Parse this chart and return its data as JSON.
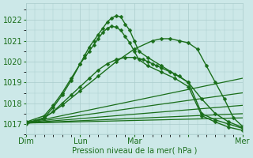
{
  "background_color": "#cce8e8",
  "grid_color": "#aacccc",
  "line_color": "#1a6e1a",
  "text_color": "#1a6e1a",
  "xlabel": "Pression niveau de la mer( hPa )",
  "ylim": [
    1016.5,
    1022.8
  ],
  "yticks": [
    1017,
    1018,
    1019,
    1020,
    1021,
    1022
  ],
  "xlim": [
    0,
    96
  ],
  "xtick_positions": [
    0,
    24,
    48,
    72,
    96
  ],
  "xtick_labels": [
    "Dim",
    "Lun",
    "Mar",
    "",
    "Mer"
  ],
  "series": [
    {
      "x": [
        0,
        8,
        12,
        16,
        20,
        24,
        26,
        28,
        30,
        32,
        34,
        36,
        38,
        40,
        42,
        44,
        46,
        48,
        50,
        54,
        60,
        66,
        72,
        78,
        84,
        90,
        96
      ],
      "y": [
        1017.0,
        1017.3,
        1017.8,
        1018.4,
        1019.1,
        1019.9,
        1020.3,
        1020.7,
        1021.0,
        1021.3,
        1021.6,
        1021.9,
        1022.1,
        1022.2,
        1022.15,
        1021.8,
        1021.5,
        1021.0,
        1020.5,
        1020.2,
        1019.8,
        1019.4,
        1019.0,
        1017.5,
        1017.2,
        1017.0,
        1016.8
      ],
      "marker": true,
      "lw": 1.0
    },
    {
      "x": [
        0,
        8,
        12,
        16,
        20,
        24,
        26,
        28,
        30,
        32,
        34,
        36,
        38,
        40,
        42,
        44,
        46,
        48,
        50,
        54,
        60,
        66,
        72,
        78,
        84,
        90,
        96
      ],
      "y": [
        1017.1,
        1017.4,
        1017.9,
        1018.5,
        1019.2,
        1019.9,
        1020.2,
        1020.5,
        1020.8,
        1021.1,
        1021.4,
        1021.6,
        1021.7,
        1021.65,
        1021.5,
        1021.2,
        1020.9,
        1020.5,
        1020.1,
        1019.8,
        1019.5,
        1019.2,
        1018.8,
        1017.4,
        1017.1,
        1016.85,
        1016.7
      ],
      "marker": true,
      "lw": 1.0
    },
    {
      "x": [
        0,
        8,
        16,
        24,
        32,
        40,
        48,
        56,
        60,
        64,
        68,
        72,
        76,
        80,
        84,
        88,
        92,
        96
      ],
      "y": [
        1017.05,
        1017.3,
        1017.9,
        1018.6,
        1019.3,
        1020.0,
        1020.6,
        1021.0,
        1021.1,
        1021.1,
        1021.0,
        1020.9,
        1020.6,
        1019.8,
        1019.0,
        1018.2,
        1017.3,
        1016.9
      ],
      "marker": true,
      "lw": 1.0
    },
    {
      "x": [
        0,
        4,
        8,
        12,
        16,
        20,
        24,
        28,
        32,
        36,
        40,
        44,
        48,
        52,
        54,
        56,
        58,
        60,
        64,
        68,
        72,
        78,
        84,
        90,
        96
      ],
      "y": [
        1017.1,
        1017.15,
        1017.3,
        1017.6,
        1018.0,
        1018.4,
        1018.8,
        1019.2,
        1019.6,
        1019.9,
        1020.1,
        1020.2,
        1020.2,
        1020.1,
        1020.0,
        1019.9,
        1019.8,
        1019.7,
        1019.5,
        1019.3,
        1019.0,
        1018.2,
        1017.5,
        1017.1,
        1016.85
      ],
      "marker": true,
      "lw": 1.0
    },
    {
      "x": [
        0,
        96
      ],
      "y": [
        1017.05,
        1019.2
      ],
      "marker": false,
      "lw": 0.9
    },
    {
      "x": [
        0,
        96
      ],
      "y": [
        1017.05,
        1018.5
      ],
      "marker": false,
      "lw": 0.9
    },
    {
      "x": [
        0,
        96
      ],
      "y": [
        1017.05,
        1017.9
      ],
      "marker": false,
      "lw": 0.9
    },
    {
      "x": [
        0,
        96
      ],
      "y": [
        1017.05,
        1017.5
      ],
      "marker": false,
      "lw": 0.9
    },
    {
      "x": [
        0,
        96
      ],
      "y": [
        1017.05,
        1017.3
      ],
      "marker": false,
      "lw": 0.9
    }
  ],
  "marker": "D",
  "markersize": 2.5
}
